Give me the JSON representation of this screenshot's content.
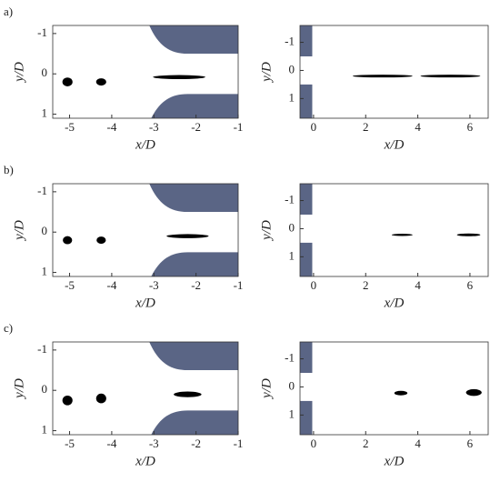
{
  "chart_data": [
    {
      "type": "image",
      "label": "a)",
      "xlabel": "x/D",
      "ylabel": "y/D",
      "xlim": [
        -5.4,
        -1
      ],
      "ylim": [
        -1.2,
        1.1
      ],
      "xticks": [
        -5,
        -4,
        -3,
        -2,
        -1
      ],
      "yticks": [
        -1,
        0,
        1
      ]
    },
    {
      "type": "image",
      "xlabel": "x/D",
      "ylabel": "y/D",
      "xlim": [
        -0.52,
        6.7
      ],
      "ylim": [
        -1.6,
        1.7
      ],
      "xticks": [
        0,
        2,
        4,
        6
      ],
      "yticks": [
        -1,
        0,
        1
      ]
    },
    {
      "type": "image",
      "label": "b)",
      "xlabel": "x/D",
      "ylabel": "y/D",
      "xlim": [
        -5.4,
        -1
      ],
      "ylim": [
        -1.2,
        1.1
      ],
      "xticks": [
        -5,
        -4,
        -3,
        -2,
        -1
      ],
      "yticks": [
        -1,
        0,
        1
      ]
    },
    {
      "type": "image",
      "xlabel": "x/D",
      "ylabel": "y/D",
      "xlim": [
        -0.52,
        6.7
      ],
      "ylim": [
        -1.6,
        1.7
      ],
      "xticks": [
        0,
        2,
        4,
        6
      ],
      "yticks": [
        -1,
        0,
        1
      ]
    },
    {
      "type": "image",
      "label": "c)",
      "xlabel": "x/D",
      "ylabel": "y/D",
      "xlim": [
        -5.4,
        -1
      ],
      "ylim": [
        -1.2,
        1.1
      ],
      "xticks": [
        -5,
        -4,
        -3,
        -2,
        -1
      ],
      "yticks": [
        -1,
        0,
        1
      ]
    },
    {
      "type": "image",
      "xlabel": "x/D",
      "ylabel": "y/D",
      "xlim": [
        -0.52,
        6.7
      ],
      "ylim": [
        -1.6,
        1.7
      ],
      "xticks": [
        0,
        2,
        4,
        6
      ],
      "yticks": [
        -1,
        0,
        1
      ]
    }
  ]
}
